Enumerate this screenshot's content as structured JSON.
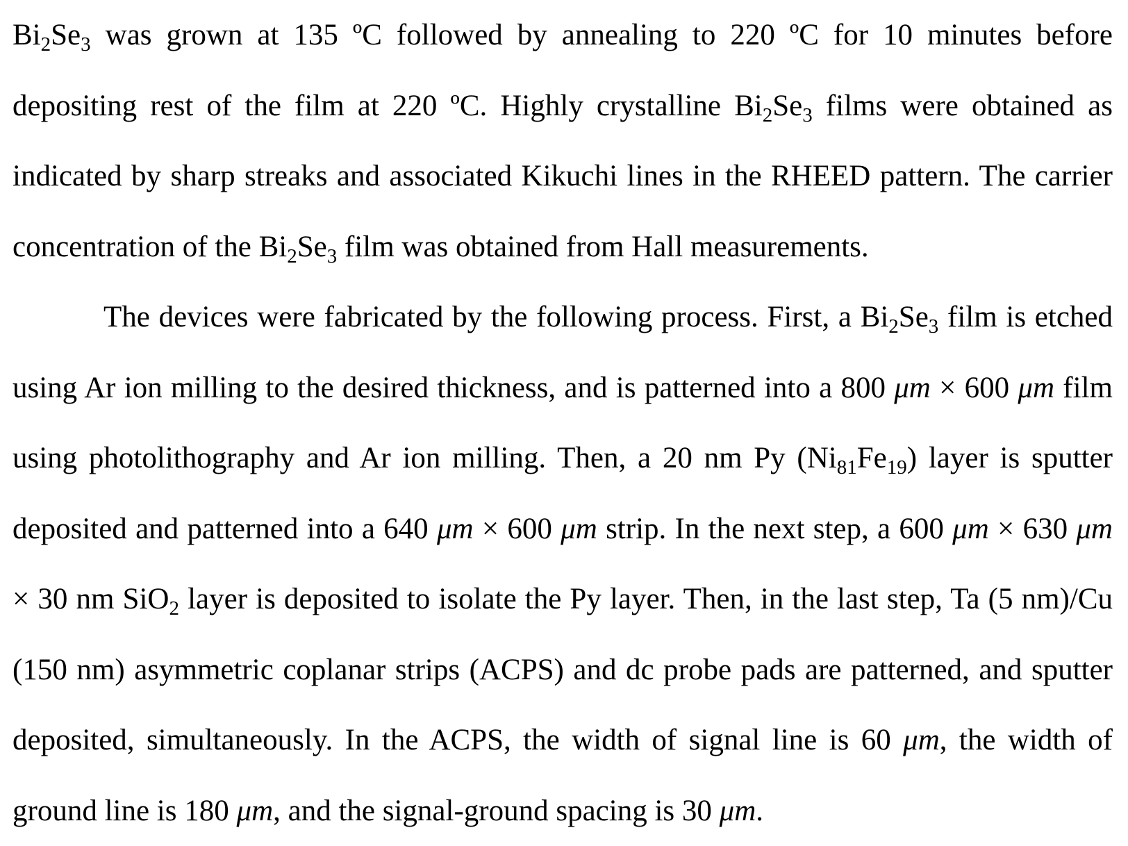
{
  "paragraphs": [
    {
      "indent": false,
      "runs": [
        {
          "t": "Bi"
        },
        {
          "t": "2",
          "s": "sub"
        },
        {
          "t": "Se"
        },
        {
          "t": "3",
          "s": "sub"
        },
        {
          "t": " was grown at 135 ºC followed by annealing to 220 ºC for 10 minutes before depositing rest of the film at 220 ºC. Highly crystalline Bi"
        },
        {
          "t": "2",
          "s": "sub"
        },
        {
          "t": "Se"
        },
        {
          "t": "3",
          "s": "sub"
        },
        {
          "t": " films were obtained as indicated by sharp streaks and associated Kikuchi lines in the RHEED pattern. The carrier concentration of the Bi"
        },
        {
          "t": "2",
          "s": "sub"
        },
        {
          "t": "Se"
        },
        {
          "t": "3",
          "s": "sub"
        },
        {
          "t": " film was obtained from Hall measurements."
        }
      ]
    },
    {
      "indent": true,
      "runs": [
        {
          "t": "The devices were fabricated by the following process. First, a Bi"
        },
        {
          "t": "2",
          "s": "sub"
        },
        {
          "t": "Se"
        },
        {
          "t": "3",
          "s": "sub"
        },
        {
          "t": " film is etched using Ar ion milling to the desired thickness, and is patterned into a 800 "
        },
        {
          "t": "μm",
          "s": "it"
        },
        {
          "t": " × 600 "
        },
        {
          "t": "μm",
          "s": "it"
        },
        {
          "t": " film using photolithography and Ar ion milling. Then, a 20 nm Py (Ni"
        },
        {
          "t": "81",
          "s": "sub"
        },
        {
          "t": "Fe"
        },
        {
          "t": "19",
          "s": "sub"
        },
        {
          "t": ") layer is sputter deposited and patterned into a 640 "
        },
        {
          "t": "μm",
          "s": "it"
        },
        {
          "t": " × 600 "
        },
        {
          "t": "μm",
          "s": "it"
        },
        {
          "t": " strip. In the next step, a 600 "
        },
        {
          "t": "μm",
          "s": "it"
        },
        {
          "t": " × 630 "
        },
        {
          "t": "μm",
          "s": "it"
        },
        {
          "t": " × 30 nm SiO"
        },
        {
          "t": "2",
          "s": "sub"
        },
        {
          "t": " layer is deposited to isolate the Py layer. Then, in the last step, Ta (5 nm)/Cu (150 nm) asymmetric coplanar strips (ACPS) and dc probe pads are patterned, and sputter deposited, simultaneously. In the ACPS, the width of signal line is 60 "
        },
        {
          "t": "μm",
          "s": "it"
        },
        {
          "t": ", the width of ground line is 180 "
        },
        {
          "t": "μm",
          "s": "it"
        },
        {
          "t": ", and the signal-ground spacing is 30 "
        },
        {
          "t": "μm",
          "s": "it"
        },
        {
          "t": "."
        }
      ]
    }
  ]
}
